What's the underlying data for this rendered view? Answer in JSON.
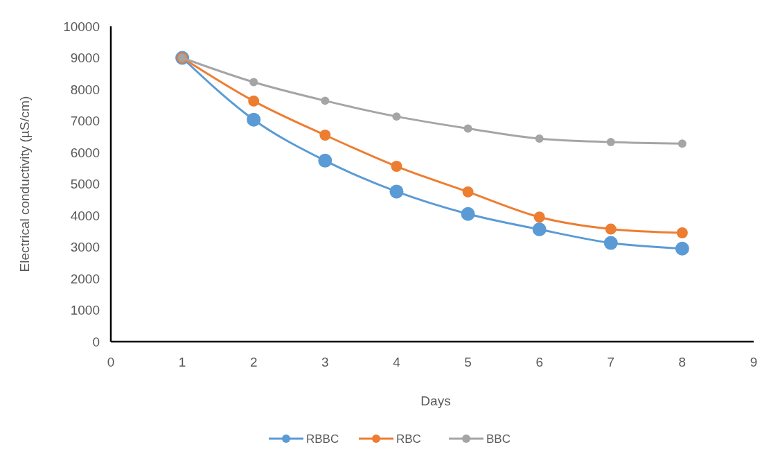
{
  "chart_data": {
    "type": "line",
    "xlabel": "Days",
    "ylabel": "Electrical conductivity (µS/cm)",
    "x": [
      1,
      2,
      3,
      4,
      5,
      6,
      7,
      8
    ],
    "series": [
      {
        "name": "RBBC",
        "color": "#5b9bd5",
        "values": [
          9000,
          7040,
          5740,
          4760,
          4050,
          3560,
          3130,
          2950
        ]
      },
      {
        "name": "RBC",
        "color": "#ed7d31",
        "values": [
          9000,
          7630,
          6550,
          5560,
          4750,
          3950,
          3570,
          3450
        ]
      },
      {
        "name": "BBC",
        "color": "#a5a5a5",
        "values": [
          9000,
          8230,
          7640,
          7140,
          6760,
          6440,
          6330,
          6280
        ]
      }
    ],
    "xlim": [
      0,
      9
    ],
    "xticks": [
      0,
      1,
      2,
      3,
      4,
      5,
      6,
      7,
      8,
      9
    ],
    "ylim": [
      0,
      10000
    ],
    "yticks": [
      0,
      1000,
      2000,
      3000,
      4000,
      5000,
      6000,
      7000,
      8000,
      9000,
      10000
    ],
    "grid": false,
    "legend": "bottom",
    "marker": "circle",
    "line_style": "solid"
  }
}
